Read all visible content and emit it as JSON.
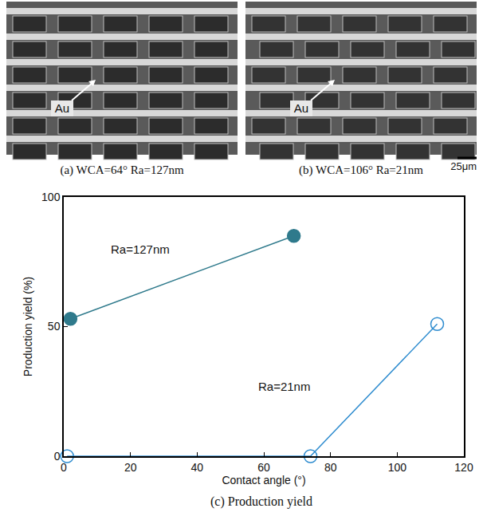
{
  "figure": {
    "panels": [
      {
        "caption": "(a) WCA=64° Ra=127nm",
        "label": "Au"
      },
      {
        "caption": "(b) WCA=106° Ra=21nm",
        "label": "Au"
      }
    ],
    "scale_bar": "25μm",
    "caption": "(c) Production yield"
  },
  "chart_data": {
    "type": "line",
    "x_label": "Contact angle (°)",
    "y_label": "Production yield (%)",
    "xlim": [
      0,
      120
    ],
    "xticks": [
      0,
      20,
      40,
      60,
      80,
      100,
      120
    ],
    "ylim": [
      0,
      100
    ],
    "yticks": [
      0,
      50,
      100
    ],
    "grid": false,
    "series": [
      {
        "color": "#2f7a8c",
        "marker": "triangle-open",
        "x": [
          2,
          69
        ],
        "values": [
          53,
          85
        ]
      },
      {
        "color": "#2e8ccf",
        "marker": "circle-open",
        "x": [
          1,
          74,
          112
        ],
        "values": [
          0,
          0,
          51
        ]
      }
    ],
    "annotations": [
      {
        "text": "Ra=127nm",
        "x": 23,
        "y": 80
      },
      {
        "text": "Ra=21nm",
        "x": 66,
        "y": 27
      }
    ]
  }
}
